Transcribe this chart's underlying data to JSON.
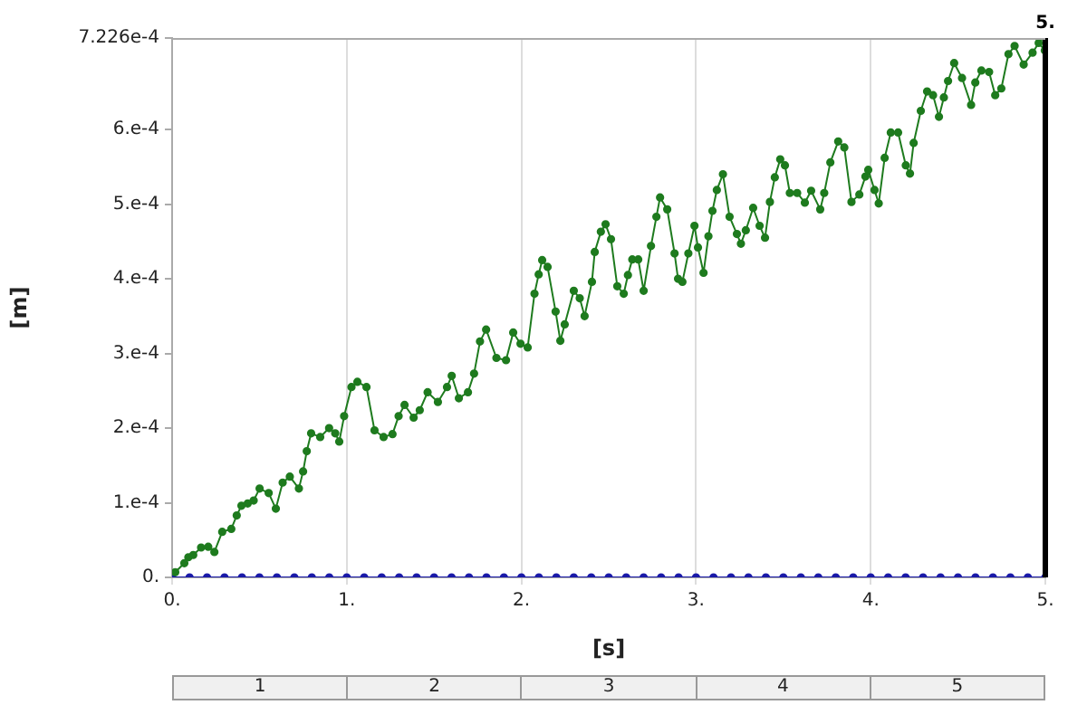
{
  "chart_data": {
    "type": "line",
    "xlabel": "[s]",
    "ylabel": "[m]",
    "xlim": [
      0,
      5
    ],
    "ylim": [
      0,
      0.0007226
    ],
    "xticks": [
      {
        "value": 0,
        "label": "0."
      },
      {
        "value": 1,
        "label": "1."
      },
      {
        "value": 2,
        "label": "2."
      },
      {
        "value": 3,
        "label": "3."
      },
      {
        "value": 4,
        "label": "4."
      },
      {
        "value": 5,
        "label": "5."
      }
    ],
    "yticks": [
      {
        "value": 0,
        "label": "0."
      },
      {
        "value": 0.0001,
        "label": "1.e-4"
      },
      {
        "value": 0.0002,
        "label": "2.e-4"
      },
      {
        "value": 0.0003,
        "label": "3.e-4"
      },
      {
        "value": 0.0004,
        "label": "4.e-4"
      },
      {
        "value": 0.0005,
        "label": "5.e-4"
      },
      {
        "value": 0.0006,
        "label": "6.e-4"
      },
      {
        "value": 0.0007226,
        "label": "7.226e-4"
      }
    ],
    "grid": "x",
    "marker": "circle",
    "line_style": "solid",
    "legend": false,
    "ref_lines": [
      {
        "axis": "x",
        "value": 5,
        "label": "5.",
        "color": "#000000"
      }
    ],
    "annotations": [
      "1",
      "2",
      "3",
      "4",
      "5"
    ],
    "series": [
      {
        "color": "#1e7b1e",
        "x": [
          0.018,
          0.07,
          0.093,
          0.121,
          0.166,
          0.207,
          0.242,
          0.287,
          0.339,
          0.37,
          0.397,
          0.433,
          0.467,
          0.501,
          0.553,
          0.594,
          0.633,
          0.674,
          0.726,
          0.75,
          0.771,
          0.796,
          0.848,
          0.899,
          0.934,
          0.957,
          0.985,
          1.027,
          1.061,
          1.113,
          1.159,
          1.211,
          1.262,
          1.297,
          1.331,
          1.383,
          1.418,
          1.463,
          1.522,
          1.574,
          1.601,
          1.642,
          1.694,
          1.729,
          1.763,
          1.798,
          1.857,
          1.912,
          1.953,
          1.995,
          2.036,
          2.075,
          2.099,
          2.119,
          2.15,
          2.196,
          2.223,
          2.248,
          2.3,
          2.334,
          2.362,
          2.404,
          2.42,
          2.455,
          2.482,
          2.513,
          2.549,
          2.586,
          2.61,
          2.635,
          2.669,
          2.7,
          2.742,
          2.773,
          2.794,
          2.835,
          2.877,
          2.897,
          2.922,
          2.956,
          2.991,
          3.011,
          3.043,
          3.071,
          3.094,
          3.119,
          3.154,
          3.192,
          3.234,
          3.257,
          3.285,
          3.327,
          3.364,
          3.395,
          3.423,
          3.451,
          3.482,
          3.509,
          3.537,
          3.579,
          3.623,
          3.659,
          3.711,
          3.734,
          3.769,
          3.814,
          3.849,
          3.89,
          3.935,
          3.97,
          3.986,
          4.022,
          4.046,
          4.08,
          4.115,
          4.157,
          4.201,
          4.225,
          4.246,
          4.287,
          4.323,
          4.357,
          4.391,
          4.419,
          4.443,
          4.478,
          4.523,
          4.575,
          4.599,
          4.634,
          4.678,
          4.713,
          4.748,
          4.789,
          4.824,
          4.876,
          4.927,
          4.962,
          4.997,
          5
        ],
        "values": [
          7e-06,
          1.9e-05,
          2.7e-05,
          3e-05,
          4e-05,
          4.1e-05,
          3.4e-05,
          6.1e-05,
          6.5e-05,
          8.3e-05,
          9.6e-05,
          9.9e-05,
          0.000103,
          0.000119,
          0.000113,
          9.2e-05,
          0.000127,
          0.000135,
          0.000119,
          0.000142,
          0.000169,
          0.000193,
          0.000188,
          0.0002,
          0.000193,
          0.000182,
          0.000216,
          0.000255,
          0.000262,
          0.000255,
          0.000197,
          0.000188,
          0.000192,
          0.000216,
          0.000231,
          0.000214,
          0.000224,
          0.000248,
          0.000235,
          0.000255,
          0.00027,
          0.00024,
          0.000248,
          0.000273,
          0.000316,
          0.000332,
          0.000294,
          0.000291,
          0.000328,
          0.000313,
          0.000308,
          0.00038,
          0.000406,
          0.000425,
          0.000416,
          0.000356,
          0.000317,
          0.000339,
          0.000384,
          0.000374,
          0.00035,
          0.000396,
          0.000436,
          0.000463,
          0.000473,
          0.000453,
          0.00039,
          0.00038,
          0.000405,
          0.000426,
          0.000426,
          0.000384,
          0.000444,
          0.000483,
          0.000509,
          0.000493,
          0.000434,
          0.0004,
          0.000396,
          0.000434,
          0.000471,
          0.000442,
          0.000408,
          0.000457,
          0.000491,
          0.000519,
          0.00054,
          0.000483,
          0.00046,
          0.000447,
          0.000465,
          0.000495,
          0.000471,
          0.000455,
          0.000503,
          0.000536,
          0.00056,
          0.000552,
          0.000515,
          0.000515,
          0.000502,
          0.000518,
          0.000493,
          0.000515,
          0.000556,
          0.000584,
          0.000576,
          0.000503,
          0.000513,
          0.000537,
          0.000546,
          0.000519,
          0.000501,
          0.000562,
          0.000596,
          0.000596,
          0.000552,
          0.000541,
          0.000582,
          0.000625,
          0.000651,
          0.000646,
          0.000617,
          0.000643,
          0.000665,
          0.000689,
          0.000669,
          0.000633,
          0.000663,
          0.000679,
          0.000677,
          0.000646,
          0.000655,
          0.000701,
          0.000712,
          0.000687,
          0.000703,
          0.000716,
          0.000706,
          0.0007226
        ]
      },
      {
        "color": "#1a1aa8",
        "x": [
          0,
          0.1,
          0.2,
          0.3,
          0.4,
          0.5,
          0.6,
          0.7,
          0.8,
          0.9,
          1,
          1.1,
          1.2,
          1.3,
          1.4,
          1.5,
          1.6,
          1.7,
          1.8,
          1.9,
          2,
          2.1,
          2.2,
          2.3,
          2.4,
          2.5,
          2.6,
          2.7,
          2.8,
          2.9,
          3,
          3.1,
          3.2,
          3.3,
          3.4,
          3.5,
          3.6,
          3.7,
          3.8,
          3.9,
          4,
          4.1,
          4.2,
          4.3,
          4.4,
          4.5,
          4.6,
          4.7,
          4.8,
          4.9,
          5
        ],
        "values": [
          0,
          0,
          0,
          0,
          0,
          0,
          0,
          0,
          0,
          0,
          0,
          0,
          0,
          0,
          0,
          0,
          0,
          0,
          0,
          0,
          0,
          0,
          0,
          0,
          0,
          0,
          0,
          0,
          0,
          0,
          0,
          0,
          0,
          0,
          0,
          0,
          0,
          0,
          0,
          0,
          0,
          0,
          0,
          0,
          0,
          0,
          0,
          0,
          0,
          0,
          0
        ]
      }
    ]
  }
}
